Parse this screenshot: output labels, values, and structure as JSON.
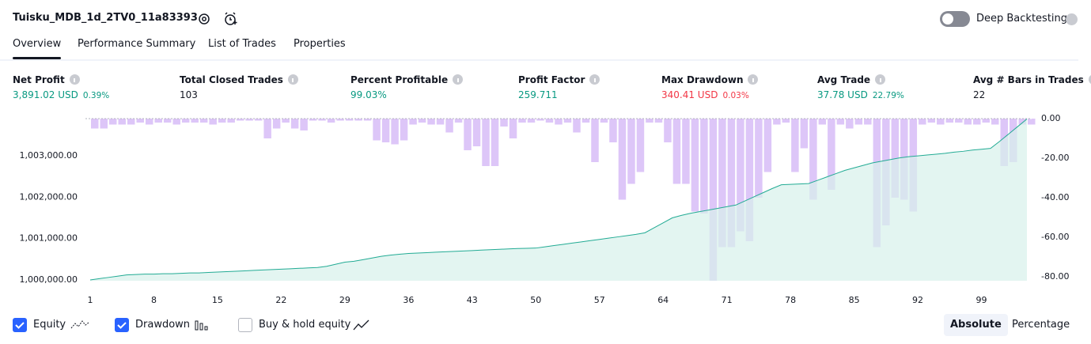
{
  "header": {
    "title": "Tuisku_MDB_1d_2TV0_11a83393",
    "toggle_label": "Deep Backtesting"
  },
  "tabs": [
    "Overview",
    "Performance Summary",
    "List of Trades",
    "Properties"
  ],
  "metrics": [
    {
      "label": "Net Profit",
      "value": "3,891.02 USD",
      "sub": "0.39%",
      "tone": "pos"
    },
    {
      "label": "Total Closed Trades",
      "value": "103",
      "tone": "plain"
    },
    {
      "label": "Percent Profitable",
      "value": "99.03%",
      "tone": "pos"
    },
    {
      "label": "Profit Factor",
      "value": "259.711",
      "tone": "pos"
    },
    {
      "label": "Max Drawdown",
      "value": "340.41 USD",
      "sub": "0.03%",
      "tone": "neg"
    },
    {
      "label": "Avg Trade",
      "value": "37.78 USD",
      "sub": "22.79%",
      "tone": "pos"
    },
    {
      "label": "Avg # Bars in Trades",
      "value": "22",
      "tone": "plain"
    }
  ],
  "chart_data": {
    "type": "combo",
    "x": [
      1,
      2,
      3,
      4,
      5,
      6,
      7,
      8,
      9,
      10,
      11,
      12,
      13,
      14,
      15,
      16,
      17,
      18,
      19,
      20,
      21,
      22,
      23,
      24,
      25,
      26,
      27,
      28,
      29,
      30,
      31,
      32,
      33,
      34,
      35,
      36,
      37,
      38,
      39,
      40,
      41,
      42,
      43,
      44,
      45,
      46,
      47,
      48,
      49,
      50,
      51,
      52,
      53,
      54,
      55,
      56,
      57,
      58,
      59,
      60,
      61,
      62,
      63,
      64,
      65,
      66,
      67,
      68,
      69,
      70,
      71,
      72,
      73,
      74,
      75,
      76,
      77,
      78,
      79,
      80,
      81,
      82,
      83,
      84,
      85,
      86,
      87,
      88,
      89,
      90,
      91,
      92,
      93,
      94,
      95,
      96,
      97,
      98,
      99,
      100,
      101,
      102,
      103,
      104
    ],
    "xlim": [
      1,
      104
    ],
    "xticks": [
      1,
      8,
      15,
      22,
      29,
      36,
      43,
      50,
      57,
      64,
      71,
      78,
      85,
      92,
      99
    ],
    "ylim": [
      999980,
      1003900
    ],
    "yticks": [
      {
        "value": 1000000,
        "label": "1,000,000.00"
      },
      {
        "value": 1001000,
        "label": "1,001,000.00"
      },
      {
        "value": 1002000,
        "label": "1,002,000.00"
      },
      {
        "value": 1003000,
        "label": "1,003,000.00"
      }
    ],
    "y2lim": [
      -82,
      0
    ],
    "y2ticks": [
      {
        "value": 0,
        "label": "0.00"
      },
      {
        "value": -20,
        "label": "-20.00"
      },
      {
        "value": -40,
        "label": "-40.00"
      },
      {
        "value": -60,
        "label": "-60.00"
      },
      {
        "value": -80,
        "label": "-80.00"
      }
    ],
    "series": [
      {
        "name": "Equity",
        "type": "area",
        "color": "#22ab94",
        "fill": "#d7f1eb",
        "values": [
          1000000,
          1000030,
          1000060,
          1000090,
          1000120,
          1000130,
          1000140,
          1000140,
          1000150,
          1000150,
          1000160,
          1000170,
          1000170,
          1000180,
          1000190,
          1000200,
          1000210,
          1000220,
          1000230,
          1000240,
          1000250,
          1000260,
          1000270,
          1000280,
          1000290,
          1000300,
          1000330,
          1000380,
          1000430,
          1000450,
          1000490,
          1000530,
          1000570,
          1000600,
          1000620,
          1000640,
          1000650,
          1000660,
          1000670,
          1000680,
          1000690,
          1000700,
          1000710,
          1000720,
          1000730,
          1000740,
          1000750,
          1000760,
          1000765,
          1000770,
          1000800,
          1000830,
          1000860,
          1000890,
          1000920,
          1000950,
          1000980,
          1001010,
          1001040,
          1001070,
          1001100,
          1001140,
          1001260,
          1001380,
          1001500,
          1001560,
          1001610,
          1001650,
          1001690,
          1001730,
          1001770,
          1001810,
          1001910,
          1002010,
          1002110,
          1002210,
          1002300,
          1002310,
          1002320,
          1002330,
          1002410,
          1002490,
          1002570,
          1002650,
          1002710,
          1002770,
          1002830,
          1002870,
          1002910,
          1002950,
          1002980,
          1003000,
          1003020,
          1003040,
          1003060,
          1003090,
          1003110,
          1003140,
          1003160,
          1003180,
          1003350,
          1003530,
          1003710,
          1003890
        ]
      },
      {
        "name": "Drawdown",
        "type": "bar",
        "axis": "y2",
        "color": "#d1b3f5",
        "values": [
          -5,
          -5,
          -3,
          -3,
          -3,
          -2,
          -3,
          -2,
          -2,
          -3,
          -2,
          -2,
          -2,
          -3,
          -2,
          -2,
          -1,
          -1,
          -1,
          -10,
          -5,
          -2,
          -5,
          -6,
          -1,
          -1,
          -2,
          -1,
          -1,
          -1,
          -1,
          -11,
          -12,
          -13,
          -11,
          -3,
          -2,
          -3,
          -3,
          -7,
          -2,
          -16,
          -14,
          -24,
          -24,
          -4,
          -10,
          -2,
          -2,
          -1,
          -2,
          -3,
          -2,
          -7,
          -2,
          -22,
          -2,
          -12,
          -41,
          -33,
          -27,
          -2,
          -2,
          -12,
          -33,
          -33,
          -47,
          -48,
          -82,
          -65,
          -65,
          -57,
          -62,
          -40,
          -27,
          -3,
          -2,
          -27,
          -15,
          -41,
          -3,
          -36,
          -3,
          -5,
          -3,
          -3,
          -65,
          -54,
          -40,
          -41,
          -47,
          -3,
          -2,
          -3,
          -2,
          -2,
          -3,
          -3,
          -2,
          -3,
          -24,
          -22,
          -3,
          -3
        ]
      }
    ]
  },
  "footer": {
    "extra_legend": "Buy & hold equity",
    "buttons": [
      "Absolute",
      "Percentage"
    ]
  }
}
